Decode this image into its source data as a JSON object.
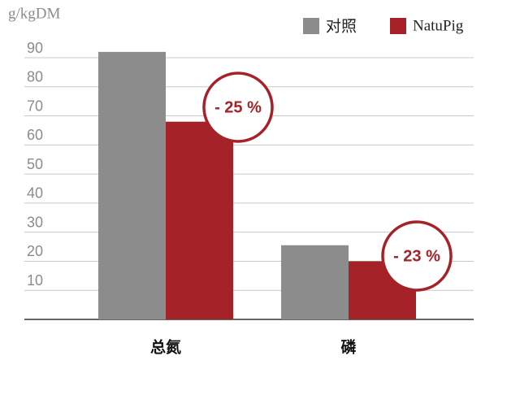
{
  "chart_data": {
    "type": "bar",
    "y_label": "g/kgDM",
    "categories": [
      "总氮",
      "磷"
    ],
    "series": [
      {
        "name": "对照",
        "color": "#8c8c8c",
        "values": [
          92,
          25.5
        ]
      },
      {
        "name": "NatuPig",
        "color": "#a52228",
        "values": [
          68,
          20
        ]
      }
    ],
    "annotations": [
      "- 25 %",
      "- 23 %"
    ],
    "ylim": [
      0,
      90
    ],
    "yticks": [
      10,
      20,
      30,
      40,
      50,
      60,
      70,
      80,
      90
    ],
    "grid": true
  }
}
